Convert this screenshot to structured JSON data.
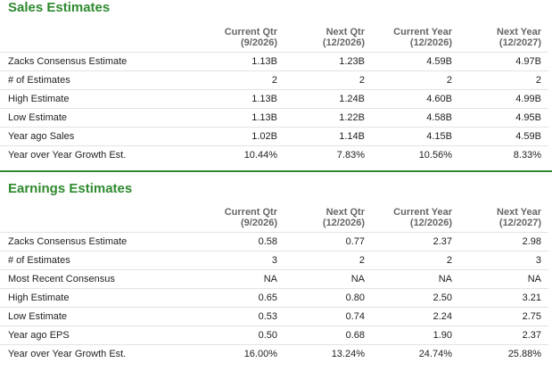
{
  "sales": {
    "title": "Sales Estimates",
    "columns": [
      {
        "name": "Current Qtr",
        "period": "(9/2026)"
      },
      {
        "name": "Next Qtr",
        "period": "(12/2026)"
      },
      {
        "name": "Current Year",
        "period": "(12/2026)"
      },
      {
        "name": "Next Year",
        "period": "(12/2027)"
      }
    ],
    "rows": [
      {
        "label": "Zacks Consensus Estimate",
        "values": [
          "1.13B",
          "1.23B",
          "4.59B",
          "4.97B"
        ]
      },
      {
        "label": "# of Estimates",
        "values": [
          "2",
          "2",
          "2",
          "2"
        ]
      },
      {
        "label": "High Estimate",
        "values": [
          "1.13B",
          "1.24B",
          "4.60B",
          "4.99B"
        ]
      },
      {
        "label": "Low Estimate",
        "values": [
          "1.13B",
          "1.22B",
          "4.58B",
          "4.95B"
        ]
      },
      {
        "label": "Year ago Sales",
        "values": [
          "1.02B",
          "1.14B",
          "4.15B",
          "4.59B"
        ]
      },
      {
        "label": "Year over Year Growth Est.",
        "values": [
          "10.44%",
          "7.83%",
          "10.56%",
          "8.33%"
        ]
      }
    ]
  },
  "earnings": {
    "title": "Earnings Estimates",
    "columns": [
      {
        "name": "Current Qtr",
        "period": "(9/2026)"
      },
      {
        "name": "Next Qtr",
        "period": "(12/2026)"
      },
      {
        "name": "Current Year",
        "period": "(12/2026)"
      },
      {
        "name": "Next Year",
        "period": "(12/2027)"
      }
    ],
    "rows": [
      {
        "label": "Zacks Consensus Estimate",
        "values": [
          "0.58",
          "0.77",
          "2.37",
          "2.98"
        ]
      },
      {
        "label": "# of Estimates",
        "values": [
          "3",
          "2",
          "2",
          "3"
        ]
      },
      {
        "label": "Most Recent Consensus",
        "values": [
          "NA",
          "NA",
          "NA",
          "NA"
        ]
      },
      {
        "label": "High Estimate",
        "values": [
          "0.65",
          "0.80",
          "2.50",
          "3.21"
        ]
      },
      {
        "label": "Low Estimate",
        "values": [
          "0.53",
          "0.74",
          "2.24",
          "2.75"
        ]
      },
      {
        "label": "Year ago EPS",
        "values": [
          "0.50",
          "0.68",
          "1.90",
          "2.37"
        ]
      },
      {
        "label": "Year over Year Growth Est.",
        "values": [
          "16.00%",
          "13.24%",
          "24.74%",
          "25.88%"
        ]
      }
    ]
  },
  "colors": {
    "accent": "#2f8a2f",
    "header_text": "#666666",
    "body_text": "#222222",
    "row_border": "#e3e3e3"
  }
}
